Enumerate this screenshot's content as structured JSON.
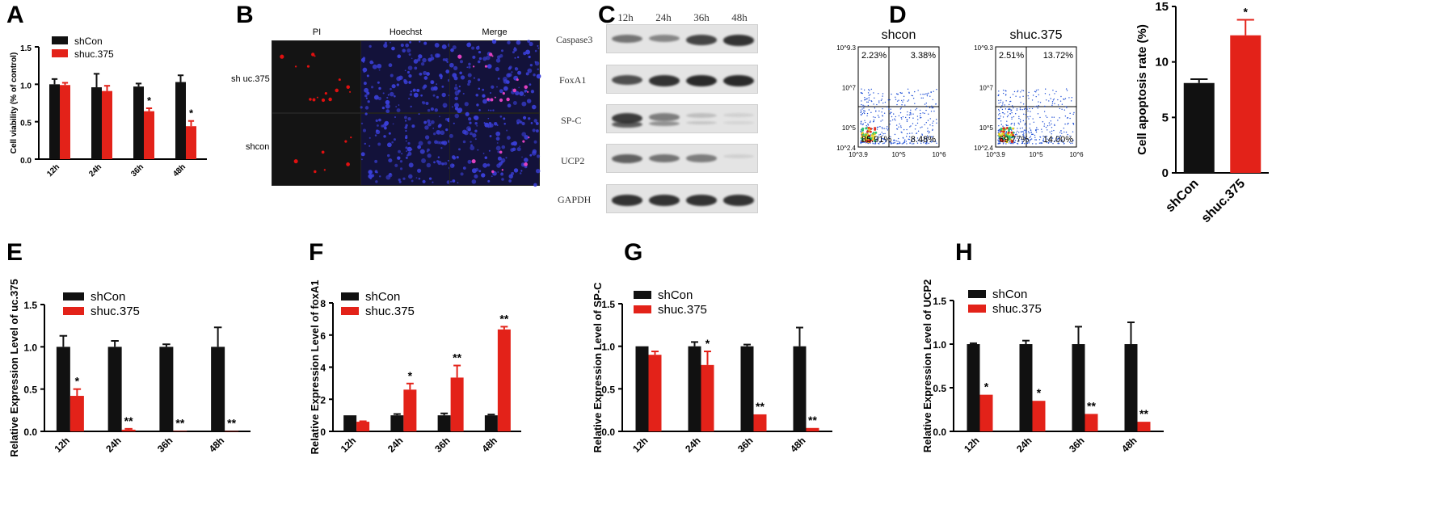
{
  "panel_labels": {
    "A": "A",
    "B": "B",
    "C": "C",
    "D": "D",
    "E": "E",
    "F": "F",
    "G": "G",
    "H": "H"
  },
  "colors": {
    "shCon": "#111111",
    "shuc": "#e32219",
    "micro_bg": "#141414",
    "hoechst": "#3a3fd8",
    "pi": "#e01010"
  },
  "panelB": {
    "titles": [
      "PI",
      "Hoechst",
      "Merge"
    ],
    "rows": [
      "sh uc.375",
      "shcon"
    ]
  },
  "panelC": {
    "lanes": [
      "12h",
      "24h",
      "36h",
      "48h"
    ],
    "proteins": [
      "Caspase3",
      "FoxA1",
      "SP-C",
      "UCP2",
      "GAPDH"
    ]
  },
  "panelD": {
    "plots": [
      {
        "title": "shcon",
        "q_ul": "2.23%",
        "q_ur": "3.38%",
        "q_ll": "85.91%",
        "q_lr": "8.48%",
        "y_ticks": [
          "10^9.3",
          "10^7",
          "10^5",
          "10^2.4"
        ],
        "x_ticks": [
          "10^3.9",
          "10^5",
          "10^6"
        ]
      },
      {
        "title": "shuc.375",
        "q_ul": "2.51%",
        "q_ur": "13.72%",
        "q_ll": "69.77%",
        "q_lr": "14.00%",
        "y_ticks": [
          "10^9.3",
          "10^7",
          "10^5",
          "10^2.4"
        ],
        "x_ticks": [
          "10^3.9",
          "10^5",
          "10^6"
        ]
      }
    ]
  },
  "chart_data": [
    {
      "id": "A",
      "type": "bar",
      "categories": [
        "12h",
        "24h",
        "36h",
        "48h"
      ],
      "series": [
        {
          "name": "shCon",
          "values": [
            1.0,
            0.96,
            0.97,
            1.03
          ],
          "err": [
            0.07,
            0.18,
            0.04,
            0.09
          ]
        },
        {
          "name": "shuc.375",
          "values": [
            0.99,
            0.91,
            0.64,
            0.44
          ],
          "err": [
            0.03,
            0.07,
            0.04,
            0.07
          ]
        }
      ],
      "sig": [
        {
          "cat": 2,
          "text": "*"
        },
        {
          "cat": 3,
          "text": "*"
        }
      ],
      "ylabel": "Cell viability (% of control)",
      "ylim": [
        0,
        1.5
      ],
      "yticks": [
        "0.0",
        "0.5",
        "1.0",
        "1.5"
      ],
      "legend": "top-left"
    },
    {
      "id": "D2",
      "type": "bar",
      "categories": [
        "shCon",
        "shuc.375"
      ],
      "series": [
        {
          "name": "",
          "values": [
            8.1,
            12.4
          ],
          "err": [
            0.35,
            1.4
          ]
        }
      ],
      "sig": [
        {
          "cat": 1,
          "text": "*"
        }
      ],
      "ylabel": "Cell apoptosis rate (%)",
      "ylim": [
        0,
        15
      ],
      "yticks": [
        "0",
        "5",
        "10",
        "15"
      ]
    },
    {
      "id": "E",
      "type": "bar",
      "categories": [
        "12h",
        "24h",
        "36h",
        "48h"
      ],
      "series": [
        {
          "name": "shCon",
          "values": [
            1.0,
            1.0,
            1.0,
            1.0
          ],
          "err": [
            0.13,
            0.07,
            0.03,
            0.23
          ]
        },
        {
          "name": "shuc.375",
          "values": [
            0.42,
            0.02,
            0.005,
            0.003
          ],
          "err": [
            0.08,
            0.01,
            0,
            0
          ]
        }
      ],
      "sig": [
        {
          "cat": 0,
          "text": "*"
        },
        {
          "cat": 1,
          "text": "**"
        },
        {
          "cat": 2,
          "text": "**"
        },
        {
          "cat": 3,
          "text": "**"
        }
      ],
      "ylabel": "Relative Expression Level of uc.375",
      "ylim": [
        0,
        1.5
      ],
      "yticks": [
        "0.0",
        "0.5",
        "1.0",
        "1.5"
      ],
      "legend": "top-left"
    },
    {
      "id": "F",
      "type": "bar",
      "categories": [
        "12h",
        "24h",
        "36h",
        "48h"
      ],
      "series": [
        {
          "name": "shCon",
          "values": [
            1.0,
            1.0,
            1.0,
            1.0
          ],
          "err": [
            0,
            0.08,
            0.12,
            0.05
          ]
        },
        {
          "name": "shuc.375",
          "values": [
            0.6,
            2.6,
            3.35,
            6.35
          ],
          "err": [
            0.03,
            0.38,
            0.75,
            0.17
          ]
        }
      ],
      "sig": [
        {
          "cat": 1,
          "text": "*"
        },
        {
          "cat": 2,
          "text": "**"
        },
        {
          "cat": 3,
          "text": "**"
        }
      ],
      "ylabel": "Relative Expression Level of foxA1",
      "ylim": [
        0,
        8
      ],
      "yticks": [
        "0",
        "2",
        "4",
        "6",
        "8"
      ],
      "legend": "top-left"
    },
    {
      "id": "G",
      "type": "bar",
      "categories": [
        "12h",
        "24h",
        "36h",
        "48h"
      ],
      "series": [
        {
          "name": "shCon",
          "values": [
            1.0,
            1.0,
            1.0,
            1.0
          ],
          "err": [
            0,
            0.05,
            0.02,
            0.22
          ]
        },
        {
          "name": "shuc.375",
          "values": [
            0.9,
            0.78,
            0.2,
            0.04
          ],
          "err": [
            0.04,
            0.16,
            0,
            0
          ]
        }
      ],
      "sig": [
        {
          "cat": 1,
          "text": "*"
        },
        {
          "cat": 2,
          "text": "**"
        },
        {
          "cat": 3,
          "text": "**"
        }
      ],
      "ylabel": "Relative Expression Level of SP-C",
      "ylim": [
        0,
        1.5
      ],
      "yticks": [
        "0.0",
        "0.5",
        "1.0",
        "1.5"
      ],
      "legend": "top-left"
    },
    {
      "id": "H",
      "type": "bar",
      "categories": [
        "12h",
        "24h",
        "36h",
        "48h"
      ],
      "series": [
        {
          "name": "shCon",
          "values": [
            1.0,
            1.0,
            1.0,
            1.0
          ],
          "err": [
            0.01,
            0.04,
            0.2,
            0.25
          ]
        },
        {
          "name": "shuc.375",
          "values": [
            0.42,
            0.35,
            0.2,
            0.11
          ],
          "err": [
            0,
            0,
            0,
            0
          ]
        }
      ],
      "sig": [
        {
          "cat": 0,
          "text": "*"
        },
        {
          "cat": 1,
          "text": "*"
        },
        {
          "cat": 2,
          "text": "**"
        },
        {
          "cat": 3,
          "text": "**"
        }
      ],
      "ylabel": "Relative Expression Level of UCP2",
      "ylim": [
        0,
        1.5
      ],
      "yticks": [
        "0.0",
        "0.5",
        "1.0",
        "1.5"
      ],
      "legend": "top-left"
    }
  ]
}
